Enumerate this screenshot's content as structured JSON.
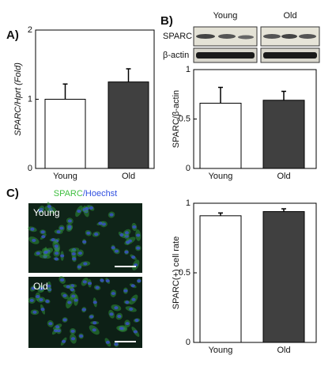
{
  "chart_data": [
    {
      "type": "bar",
      "panel": "A)",
      "ylabel": "SPARC/Hprt (Fold)",
      "categories": [
        "Young",
        "Old"
      ],
      "values": [
        1.0,
        1.25
      ],
      "errors": [
        0.22,
        0.19
      ],
      "colors": [
        "#ffffff",
        "#404040"
      ],
      "ylim": [
        0,
        2
      ],
      "yticks": [
        0,
        1,
        2
      ]
    },
    {
      "type": "bar",
      "panel": "B)",
      "ylabel": "SPARC/β-actin",
      "categories": [
        "Young",
        "Old"
      ],
      "values": [
        0.66,
        0.69
      ],
      "errors": [
        0.16,
        0.09
      ],
      "colors": [
        "#ffffff",
        "#404040"
      ],
      "ylim": [
        0,
        1
      ],
      "yticks": [
        0,
        0.5,
        1
      ]
    },
    {
      "type": "bar",
      "panel": "C)",
      "ylabel": "SPARC(+) cell rate",
      "categories": [
        "Young",
        "Old"
      ],
      "values": [
        0.91,
        0.94
      ],
      "errors": [
        0.02,
        0.02
      ],
      "colors": [
        "#ffffff",
        "#404040"
      ],
      "ylim": [
        0,
        1
      ],
      "yticks": [
        0,
        0.5,
        1
      ]
    }
  ],
  "blot": {
    "lanes": [
      "Young",
      "Old"
    ],
    "rows": [
      "SPARC",
      "β-actin"
    ]
  },
  "micrograph": {
    "stain": [
      "SPARC",
      "/Hoechst"
    ],
    "labels": [
      "Young",
      "Old"
    ]
  }
}
